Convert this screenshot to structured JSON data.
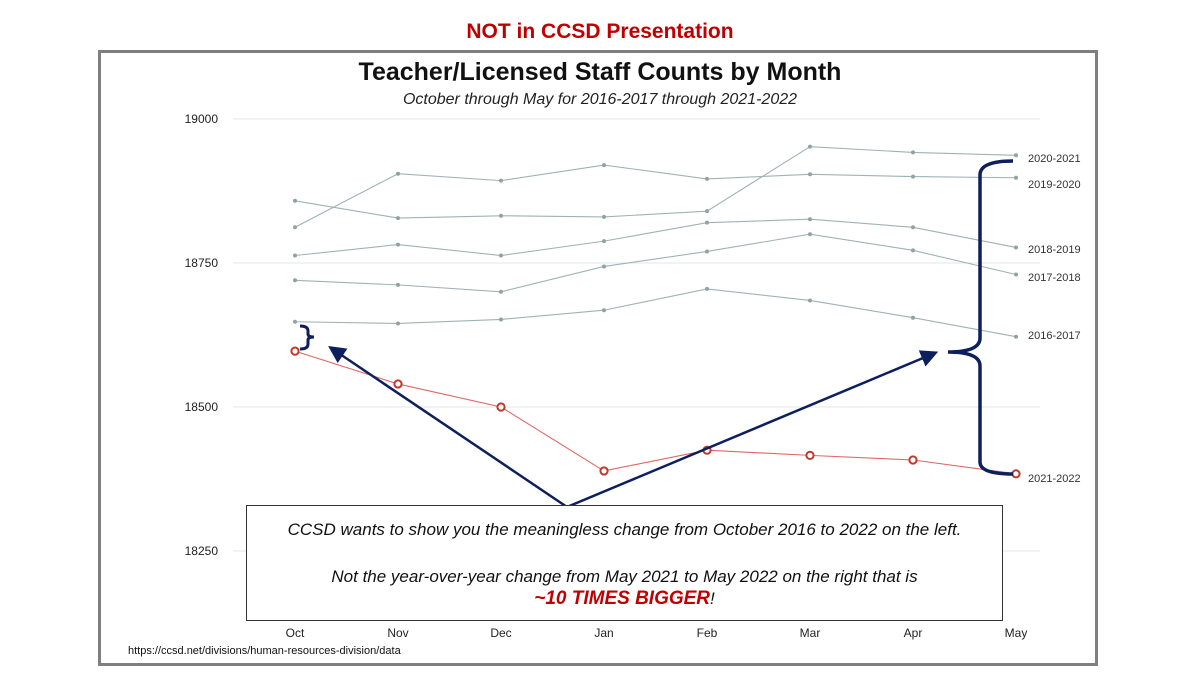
{
  "banner": "NOT in CCSD Presentation",
  "source": "https://ccsd.net/divisions/human-resources-division/data",
  "callout": {
    "line1": "CCSD wants to show you the meaningless change from October 2016 to 2022 on the left.",
    "line2": "Not the year-over-year change from May 2021 to May 2022 on the right that is",
    "emphasis": "~10 TIMES BIGGER",
    "suffix": "!"
  },
  "chart_data": {
    "type": "line",
    "title": "Teacher/Licensed Staff Counts by Month",
    "subtitle": "October through May for 2016-2017 through 2021-2022",
    "categories": [
      "Oct",
      "Nov",
      "Dec",
      "Jan",
      "Feb",
      "Mar",
      "Apr",
      "May"
    ],
    "ylim": [
      18230,
      19000
    ],
    "yticks": [
      18250,
      18500,
      18750,
      19000
    ],
    "grid": "horizontal",
    "legend": "right-end labels",
    "colors": {
      "past": "#9fb3b3",
      "current": "#e06666",
      "current_marker": "#c0392b",
      "arrow": "#0d1f5c"
    },
    "series": [
      {
        "name": "2016-2017",
        "values": [
          18648,
          18645,
          18652,
          18668,
          18705,
          18685,
          18655,
          18622
        ]
      },
      {
        "name": "2017-2018",
        "values": [
          18720,
          18712,
          18700,
          18744,
          18770,
          18800,
          18772,
          18730
        ]
      },
      {
        "name": "2018-2019",
        "values": [
          18763,
          18782,
          18763,
          18788,
          18820,
          18826,
          18812,
          18777
        ]
      },
      {
        "name": "2019-2020",
        "values": [
          18812,
          18905,
          18893,
          18920,
          18896,
          18904,
          18900,
          18898
        ]
      },
      {
        "name": "2020-2021",
        "values": [
          18858,
          18828,
          18832,
          18830,
          18840,
          18952,
          18942,
          18937
        ]
      },
      {
        "name": "2021-2022",
        "values": [
          18597,
          18540,
          18500,
          18389,
          18425,
          18416,
          18408,
          18384
        ]
      }
    ]
  }
}
